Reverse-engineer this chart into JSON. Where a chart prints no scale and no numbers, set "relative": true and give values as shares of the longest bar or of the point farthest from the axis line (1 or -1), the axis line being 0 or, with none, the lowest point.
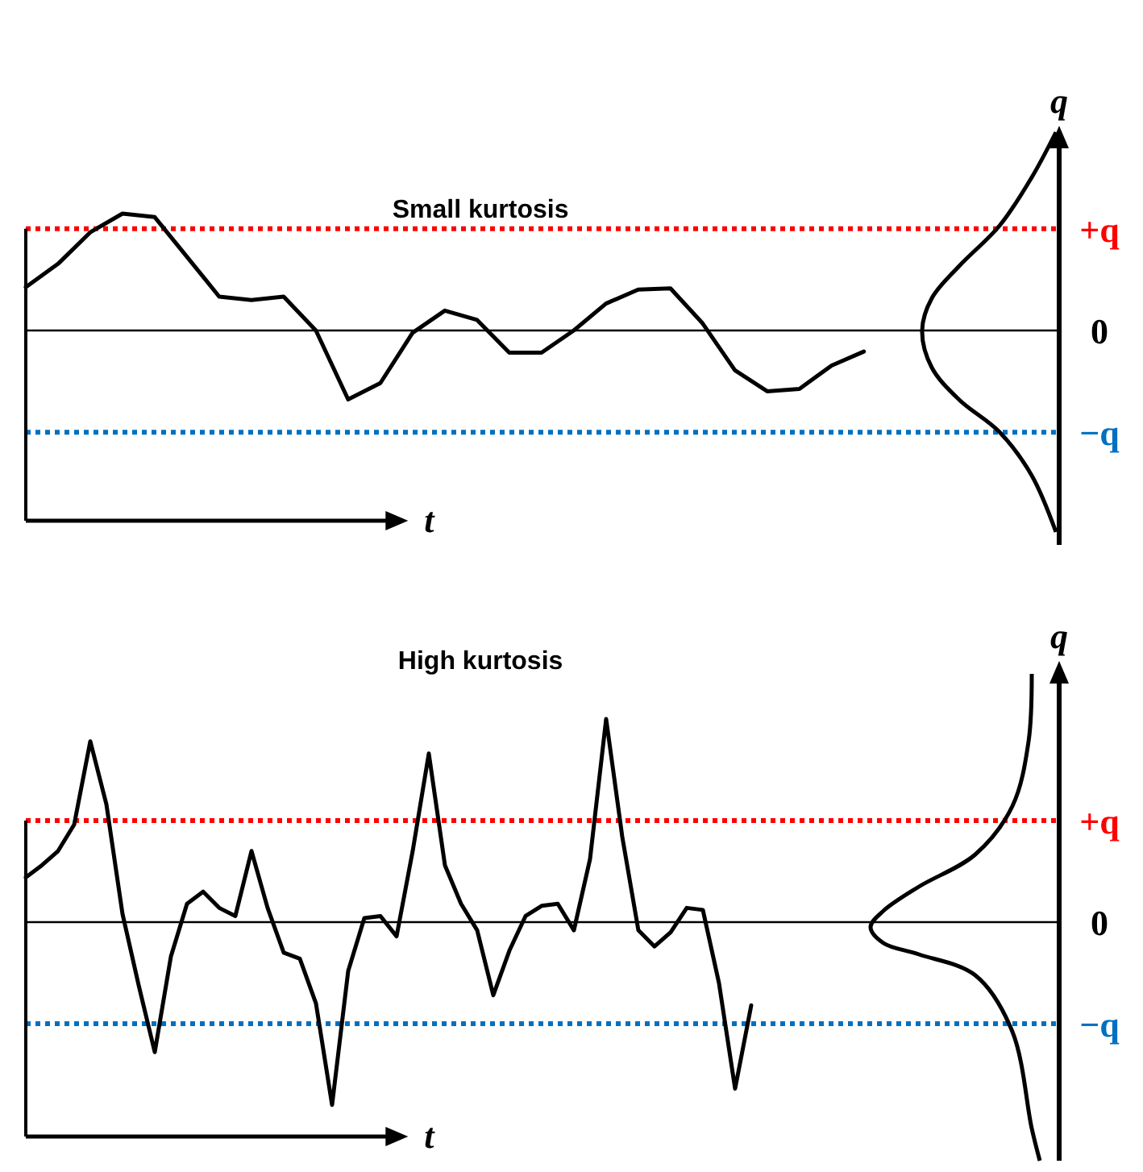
{
  "chart_data": [
    {
      "type": "line",
      "title": "Small kurtosis",
      "xlabel": "t",
      "ylabel": "q",
      "relative": true,
      "categories": [
        null,
        null,
        null,
        null,
        null,
        null,
        null,
        null,
        null,
        null,
        null,
        null,
        null,
        null,
        null,
        null,
        null,
        null,
        null,
        null,
        null,
        null,
        null,
        null,
        null,
        null,
        null
      ],
      "ref_lines": [
        {
          "axis": "y",
          "value": 0.87,
          "label": "+q",
          "color": "#ff0000",
          "line_style": "dotted"
        },
        {
          "axis": "y",
          "value": -0.87,
          "label": "−q",
          "color": "#0070c0",
          "line_style": "dotted"
        },
        {
          "axis": "y",
          "value": 0,
          "label": "0",
          "color": "#000000",
          "line_style": "solid"
        }
      ],
      "series": [
        {
          "color": "#000000",
          "values": [
            0.37,
            0.57,
            0.84,
            1,
            0.97,
            0.63,
            0.29,
            0.26,
            0.29,
            0,
            -0.59,
            -0.45,
            -0.02,
            0.17,
            0.09,
            -0.19,
            -0.19,
            0,
            0.23,
            0.35,
            0.36,
            0.06,
            -0.34,
            -0.52,
            -0.5,
            -0.3,
            -0.18
          ]
        }
      ]
    },
    {
      "type": "line",
      "title": "High kurtosis",
      "xlabel": "t",
      "ylabel": "q",
      "relative": true,
      "categories": [
        null,
        null,
        null,
        null,
        null,
        null,
        null,
        null,
        null,
        null,
        null,
        null,
        null,
        null,
        null,
        null,
        null,
        null,
        null,
        null,
        null,
        null,
        null,
        null,
        null,
        null,
        null,
        null,
        null,
        null,
        null,
        null,
        null,
        null,
        null,
        null,
        null,
        null,
        null,
        null,
        null,
        null,
        null,
        null,
        null,
        null
      ],
      "ref_lines": [
        {
          "axis": "y",
          "value": 0.5,
          "label": "+q",
          "color": "#ff0000",
          "line_style": "dotted"
        },
        {
          "axis": "y",
          "value": -0.5,
          "label": "−q",
          "color": "#0070c0",
          "line_style": "dotted"
        },
        {
          "axis": "y",
          "value": 0,
          "label": "0",
          "color": "#000000",
          "line_style": "solid"
        }
      ],
      "series": [
        {
          "color": "#000000",
          "values": [
            0.22,
            0.28,
            0.35,
            0.48,
            0.89,
            0.58,
            0.04,
            -0.31,
            -0.64,
            -0.17,
            0.09,
            0.15,
            0.07,
            0.03,
            0.35,
            0.07,
            -0.15,
            -0.18,
            -0.4,
            -0.9,
            -0.24,
            0.02,
            0.03,
            -0.07,
            0.35,
            0.83,
            0.28,
            0.09,
            -0.04,
            -0.36,
            -0.14,
            0.03,
            0.08,
            0.09,
            -0.04,
            0.31,
            1,
            0.42,
            -0.04,
            -0.12,
            -0.05,
            0.07,
            0.06,
            -0.3,
            -0.82,
            -0.41
          ]
        }
      ]
    }
  ]
}
